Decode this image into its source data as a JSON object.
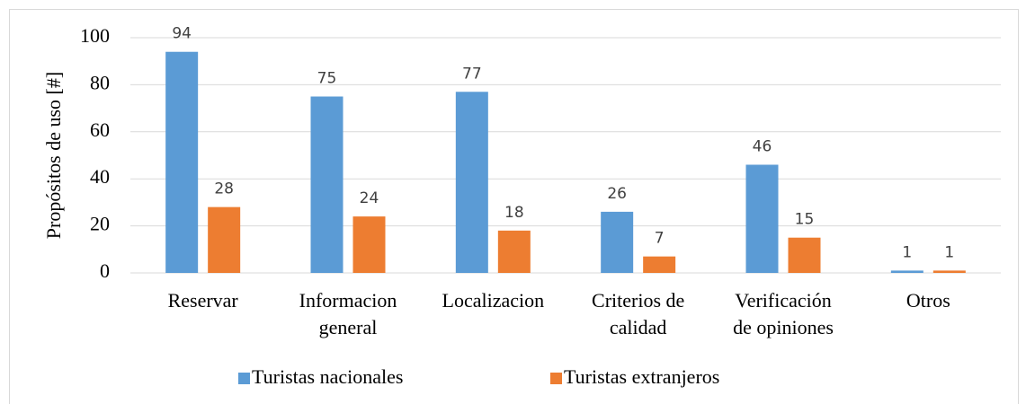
{
  "chart_data": {
    "type": "bar",
    "y_label": "Propósitos de uso [#]",
    "categories": [
      [
        "Reservar"
      ],
      [
        "Informacion",
        "general"
      ],
      [
        "Localizacion"
      ],
      [
        "Criterios de",
        "calidad"
      ],
      [
        "Verificación",
        "de opiniones"
      ],
      [
        "Otros"
      ]
    ],
    "series": [
      {
        "name": "Turistas nacionales",
        "color": "#5b9bd5",
        "values": [
          94,
          75,
          77,
          26,
          46,
          1
        ]
      },
      {
        "name": "Turistas extranjeros",
        "color": "#ed7d31",
        "values": [
          28,
          24,
          18,
          7,
          15,
          1
        ]
      }
    ],
    "ylim": [
      0,
      100
    ],
    "yticks": [
      0,
      20,
      40,
      60,
      80,
      100
    ],
    "grid": true,
    "legend": "bottom"
  }
}
